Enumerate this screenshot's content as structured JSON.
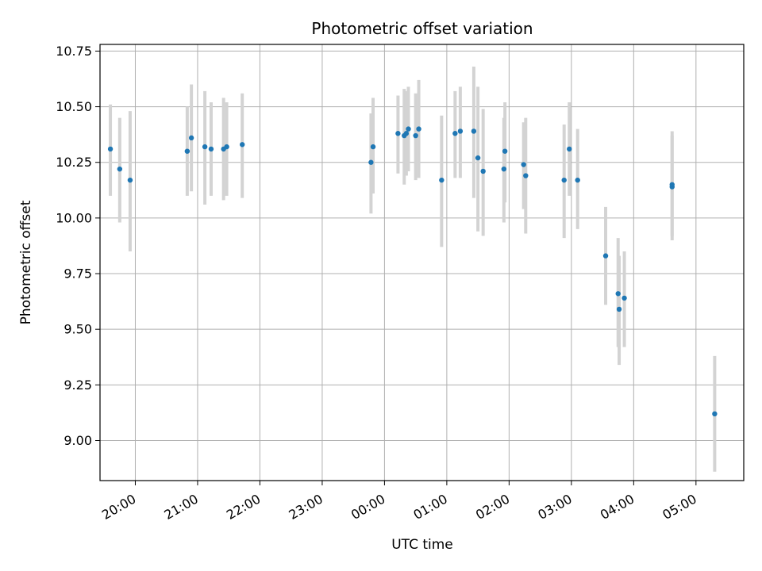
{
  "chart_data": {
    "type": "scatter",
    "title": "Photometric offset variation",
    "xlabel": "UTC time",
    "ylabel": "Photometric offset",
    "x_ticks": [
      "20:00",
      "21:00",
      "22:00",
      "23:00",
      "00:00",
      "01:00",
      "02:00",
      "03:00",
      "04:00",
      "05:00"
    ],
    "y_ticks": [
      "9.00",
      "9.25",
      "9.50",
      "9.75",
      "10.00",
      "10.25",
      "10.50",
      "10.75"
    ],
    "xlim": [
      "19:26",
      "05:46"
    ],
    "ylim": [
      8.82,
      10.78
    ],
    "grid": true,
    "colors": {
      "point": "#1f77b4",
      "errorbar": "#d3d3d3",
      "grid": "#b0b0b0"
    },
    "points": [
      {
        "t": "19:36",
        "y": 10.31,
        "lo": 10.1,
        "hi": 10.51
      },
      {
        "t": "19:45",
        "y": 10.22,
        "lo": 9.98,
        "hi": 10.45
      },
      {
        "t": "19:55",
        "y": 10.17,
        "lo": 9.85,
        "hi": 10.48
      },
      {
        "t": "20:50",
        "y": 10.3,
        "lo": 10.1,
        "hi": 10.5
      },
      {
        "t": "20:54",
        "y": 10.36,
        "lo": 10.12,
        "hi": 10.6
      },
      {
        "t": "21:07",
        "y": 10.32,
        "lo": 10.06,
        "hi": 10.57
      },
      {
        "t": "21:13",
        "y": 10.31,
        "lo": 10.1,
        "hi": 10.52
      },
      {
        "t": "21:25",
        "y": 10.31,
        "lo": 10.08,
        "hi": 10.54
      },
      {
        "t": "21:28",
        "y": 10.32,
        "lo": 10.1,
        "hi": 10.52
      },
      {
        "t": "21:43",
        "y": 10.33,
        "lo": 10.09,
        "hi": 10.56
      },
      {
        "t": "23:47",
        "y": 10.25,
        "lo": 10.02,
        "hi": 10.47
      },
      {
        "t": "23:49",
        "y": 10.32,
        "lo": 10.11,
        "hi": 10.54
      },
      {
        "t": "00:13",
        "y": 10.38,
        "lo": 10.2,
        "hi": 10.55
      },
      {
        "t": "00:19",
        "y": 10.37,
        "lo": 10.15,
        "hi": 10.58
      },
      {
        "t": "00:21",
        "y": 10.38,
        "lo": 10.19,
        "hi": 10.57
      },
      {
        "t": "00:23",
        "y": 10.4,
        "lo": 10.21,
        "hi": 10.59
      },
      {
        "t": "00:30",
        "y": 10.37,
        "lo": 10.17,
        "hi": 10.56
      },
      {
        "t": "00:33",
        "y": 10.4,
        "lo": 10.18,
        "hi": 10.62
      },
      {
        "t": "00:55",
        "y": 10.17,
        "lo": 9.87,
        "hi": 10.46
      },
      {
        "t": "01:08",
        "y": 10.38,
        "lo": 10.18,
        "hi": 10.57
      },
      {
        "t": "01:13",
        "y": 10.39,
        "lo": 10.18,
        "hi": 10.59
      },
      {
        "t": "01:26",
        "y": 10.39,
        "lo": 10.09,
        "hi": 10.68
      },
      {
        "t": "01:30",
        "y": 10.27,
        "lo": 9.94,
        "hi": 10.59
      },
      {
        "t": "01:35",
        "y": 10.21,
        "lo": 9.92,
        "hi": 10.49
      },
      {
        "t": "01:55",
        "y": 10.22,
        "lo": 9.98,
        "hi": 10.45
      },
      {
        "t": "01:56",
        "y": 10.3,
        "lo": 10.07,
        "hi": 10.52
      },
      {
        "t": "02:14",
        "y": 10.24,
        "lo": 10.04,
        "hi": 10.43
      },
      {
        "t": "02:16",
        "y": 10.19,
        "lo": 9.93,
        "hi": 10.45
      },
      {
        "t": "02:53",
        "y": 10.17,
        "lo": 9.91,
        "hi": 10.42
      },
      {
        "t": "02:58",
        "y": 10.31,
        "lo": 10.1,
        "hi": 10.52
      },
      {
        "t": "03:06",
        "y": 10.17,
        "lo": 9.95,
        "hi": 10.4
      },
      {
        "t": "03:33",
        "y": 9.83,
        "lo": 9.61,
        "hi": 10.05
      },
      {
        "t": "03:45",
        "y": 9.66,
        "lo": 9.42,
        "hi": 9.91
      },
      {
        "t": "03:46",
        "y": 9.59,
        "lo": 9.34,
        "hi": 9.83
      },
      {
        "t": "03:51",
        "y": 9.64,
        "lo": 9.42,
        "hi": 9.85
      },
      {
        "t": "04:37",
        "y": 10.14,
        "lo": 9.9,
        "hi": 10.39
      },
      {
        "t": "04:37",
        "y": 10.15,
        "lo": 9.92,
        "hi": 10.37
      },
      {
        "t": "05:18",
        "y": 9.12,
        "lo": 8.86,
        "hi": 9.38
      }
    ]
  }
}
